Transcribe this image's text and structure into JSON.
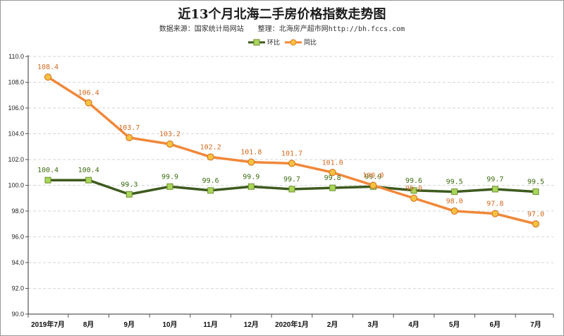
{
  "chart_data": {
    "type": "line",
    "title": "近13个月北海二手房价格指数走势图",
    "subtitle": "数据来源：国家统计局网站　　整理：北海房产超市网http://bh.fccs.com",
    "categories": [
      "2019年7月",
      "8月",
      "9月",
      "10月",
      "11月",
      "12月",
      "2020年1月",
      "2月",
      "3月",
      "4月",
      "5月",
      "6月",
      "7月"
    ],
    "ylim": [
      90.0,
      110.0
    ],
    "yticks": [
      "90.0",
      "92.0",
      "94.0",
      "96.0",
      "98.0",
      "100.0",
      "102.0",
      "104.0",
      "106.0",
      "108.0",
      "110.0"
    ],
    "grid": "horizontal-dashed",
    "legend_position": "top-center",
    "series": [
      {
        "name": "环比",
        "color": "#3d5a1e",
        "marker_color": "#a9d65b",
        "label_color": "#3d6b12",
        "values": [
          100.4,
          100.4,
          99.3,
          99.9,
          99.6,
          99.9,
          99.7,
          99.8,
          99.9,
          99.6,
          99.5,
          99.7,
          99.5
        ],
        "labels": [
          "100.4",
          "100.4",
          "99.3",
          "99.9",
          "99.6",
          "99.9",
          "99.7",
          "99.8",
          "99.9",
          "99.6",
          "99.5",
          "99.7",
          "99.5"
        ]
      },
      {
        "name": "同比",
        "color": "#f0883a",
        "marker_color": "#f5c242",
        "label_color": "#d2691e",
        "values": [
          108.4,
          106.4,
          103.7,
          103.2,
          102.2,
          101.8,
          101.7,
          101.0,
          100.0,
          99.0,
          98.0,
          97.8,
          97.0
        ],
        "labels": [
          "108.4",
          "106.4",
          "103.7",
          "103.2",
          "102.2",
          "101.8",
          "101.7",
          "101.0",
          "100.0",
          "99.0",
          "98.0",
          "97.8",
          "97.0"
        ]
      }
    ]
  }
}
